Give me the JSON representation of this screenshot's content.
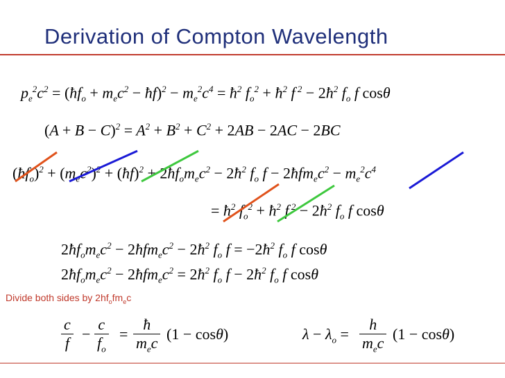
{
  "title": "Derivation of Compton Wavelength",
  "equations": {
    "eq1": "pₑ²c² = (ħfₒ + mₑc² − ħf)² − mₑ²c⁴ = ħ²fₒ² + ħ²f² − 2ħ²fₒf cosθ",
    "eq2": "(A + B − C)² = A² + B² + C² + 2AB − 2AC − 2BC",
    "eq3": "(ħfₒ)² + (mₑc²)² + (ħf)² + 2ħfₒmₑc² − 2ħ²fₒf − 2ħfmₑc² − mₑ²c⁴",
    "eq4": "= ħ²fₒ² + ħ²f² − 2ħ²fₒf cosθ",
    "eq5": "2ħfₒmₑc² − 2ħfmₑc² − 2ħ²fₒf = −2ħ²fₒf cosθ",
    "eq6": "2ħfₒmₑc² − 2ħfmₑc² = 2ħ²fₒf − 2ħ²fₒf cosθ",
    "eq7": "c/f − c/fₒ = ħ/(mₑc) (1 − cosθ)",
    "eq8": "λ − λₒ = h/(mₑc) (1 − cosθ)"
  },
  "note": "Divide both sides by 2hfₒfmₑc",
  "strike_colors": {
    "orange": "#e0521b",
    "blue": "#1a1ad6",
    "green": "#3ec83e"
  }
}
